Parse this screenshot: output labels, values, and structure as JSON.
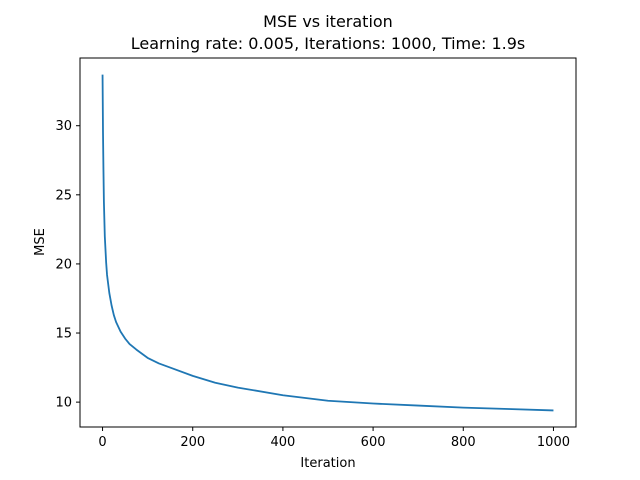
{
  "chart_data": {
    "type": "line",
    "title": "MSE vs iteration",
    "subtitle": "Learning rate: 0.005, Iterations: 1000, Time: 1.9s",
    "xlabel": "Iteration",
    "ylabel": "MSE",
    "xlim": [
      -50,
      1050
    ],
    "ylim": [
      8.2,
      34.9
    ],
    "xticks": [
      0,
      200,
      400,
      600,
      800,
      1000
    ],
    "yticks": [
      10,
      15,
      20,
      25,
      30
    ],
    "grid": false,
    "series": [
      {
        "color": "#1f77b4",
        "x": [
          0,
          1,
          2,
          3,
          5,
          8,
          10,
          15,
          20,
          25,
          30,
          40,
          50,
          60,
          75,
          100,
          125,
          150,
          200,
          250,
          300,
          400,
          500,
          600,
          700,
          800,
          900,
          1000
        ],
        "y": [
          33.7,
          29.5,
          26.8,
          24.5,
          22.0,
          20.1,
          19.2,
          17.9,
          17.0,
          16.3,
          15.8,
          15.1,
          14.6,
          14.2,
          13.8,
          13.2,
          12.8,
          12.5,
          11.9,
          11.4,
          11.05,
          10.5,
          10.1,
          9.9,
          9.75,
          9.6,
          9.5,
          9.4
        ]
      }
    ]
  }
}
